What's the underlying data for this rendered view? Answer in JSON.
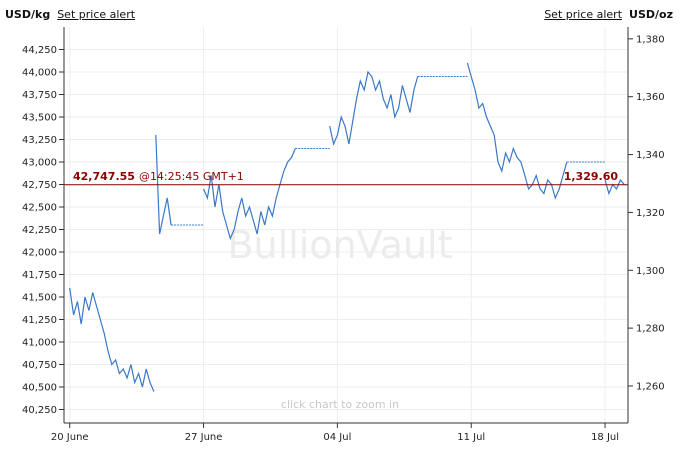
{
  "header": {
    "left_unit": "USD/kg",
    "left_alert": "Set price alert",
    "right_alert": "Set price alert",
    "right_unit": "USD/oz"
  },
  "watermark": "BullionVault",
  "hint": "click chart to zoom in",
  "current": {
    "kg_price": "42,747.55",
    "time": "@14:25:45 GMT+1",
    "oz_price": "1,329.60",
    "kg_value": 42747.55
  },
  "colors": {
    "series": "#3a78c8",
    "price_line": "#8b0000",
    "axis": "#333333"
  },
  "chart_data": {
    "type": "line",
    "xlabel": "",
    "ylabel_left": "USD/kg",
    "ylabel_right": "USD/oz",
    "left_axis": {
      "range": [
        40100,
        44500
      ],
      "ticks": [
        "40,250",
        "40,500",
        "40,750",
        "41,000",
        "41,250",
        "41,500",
        "41,750",
        "42,000",
        "42,250",
        "42,500",
        "42,750",
        "43,000",
        "43,250",
        "43,500",
        "43,750",
        "44,000",
        "44,250"
      ]
    },
    "right_axis": {
      "range": [
        1247.2,
        1384.1
      ],
      "ticks": [
        "1,260",
        "1,280",
        "1,300",
        "1,320",
        "1,340",
        "1,360",
        "1,380"
      ]
    },
    "x_ticks": [
      "20 June",
      "27 June",
      "04 Jul",
      "11 Jul",
      "18 Jul"
    ],
    "x_ticks_day": [
      0,
      7,
      14,
      21,
      28
    ],
    "x_range_days": [
      -0.3,
      29.2
    ],
    "series": [
      {
        "segments": [
          {
            "day": [
              0.0,
              0.2,
              0.4,
              0.6,
              0.8,
              1.0,
              1.2,
              1.4,
              1.6,
              1.8,
              2.0,
              2.2,
              2.4,
              2.6,
              2.8,
              3.0,
              3.2,
              3.4,
              3.6,
              3.8,
              4.0,
              4.2,
              4.4
            ],
            "value": [
              41600,
              41300,
              41450,
              41200,
              41500,
              41350,
              41550,
              41400,
              41250,
              41100,
              40900,
              40750,
              40800,
              40650,
              40700,
              40600,
              40750,
              40550,
              40650,
              40500,
              40700,
              40550,
              40450
            ]
          },
          {
            "day": [
              4.5,
              4.7,
              4.9,
              5.1,
              5.3
            ],
            "value": [
              43300,
              42200,
              42400,
              42600,
              42300
            ]
          },
          {
            "day": [
              5.3,
              7.0
            ],
            "value": [
              42300,
              42300
            ]
          },
          {
            "day": [
              7.0,
              7.2,
              7.4,
              7.6,
              7.8,
              8.0,
              8.2,
              8.4,
              8.6,
              8.8,
              9.0,
              9.2,
              9.4,
              9.6,
              9.8,
              10.0,
              10.2,
              10.4,
              10.6,
              10.8,
              11.0,
              11.2
            ],
            "value": [
              42700,
              42600,
              42850,
              42500,
              42750,
              42450,
              42300,
              42150,
              42250,
              42450,
              42600,
              42400,
              42500,
              42350,
              42200,
              42450,
              42300,
              42500,
              42400,
              42600,
              42750,
              42900
            ]
          },
          {
            "day": [
              11.2,
              11.4,
              11.6,
              11.8
            ],
            "value": [
              42900,
              43000,
              43050,
              43150
            ]
          },
          {
            "day": [
              11.8,
              13.6
            ],
            "value": [
              43150,
              43150
            ]
          },
          {
            "day": [
              13.6,
              13.8,
              14.0,
              14.2,
              14.4,
              14.6,
              14.8,
              15.0,
              15.2,
              15.4,
              15.6,
              15.8,
              16.0,
              16.2,
              16.4,
              16.6,
              16.8,
              17.0,
              17.2,
              17.4,
              17.6,
              17.8,
              18.0,
              18.2
            ],
            "value": [
              43400,
              43200,
              43300,
              43500,
              43400,
              43200,
              43450,
              43700,
              43900,
              43800,
              44000,
              43950,
              43800,
              43900,
              43700,
              43600,
              43750,
              43500,
              43600,
              43850,
              43700,
              43550,
              43800,
              43950
            ]
          },
          {
            "day": [
              18.2,
              20.8
            ],
            "value": [
              43950,
              43950
            ]
          },
          {
            "day": [
              20.8,
              21.0,
              21.2,
              21.4,
              21.6,
              21.8,
              22.0,
              22.2,
              22.4,
              22.6,
              22.8,
              23.0,
              23.2,
              23.4,
              23.6,
              23.8,
              24.0,
              24.2,
              24.4,
              24.6,
              24.8,
              25.0,
              25.2,
              25.4,
              25.6,
              25.8,
              26.0
            ],
            "value": [
              44100,
              43950,
              43800,
              43600,
              43650,
              43500,
              43400,
              43300,
              43000,
              42900,
              43100,
              43000,
              43150,
              43050,
              43000,
              42850,
              42700,
              42750,
              42850,
              42700,
              42650,
              42800,
              42750,
              42600,
              42700,
              42850,
              43000
            ]
          },
          {
            "day": [
              26.0,
              28.0
            ],
            "value": [
              43000,
              43000
            ]
          },
          {
            "day": [
              28.0,
              28.2,
              28.4,
              28.6,
              28.8,
              29.0
            ],
            "value": [
              42800,
              42650,
              42750,
              42700,
              42800,
              42750
            ]
          }
        ]
      }
    ]
  }
}
